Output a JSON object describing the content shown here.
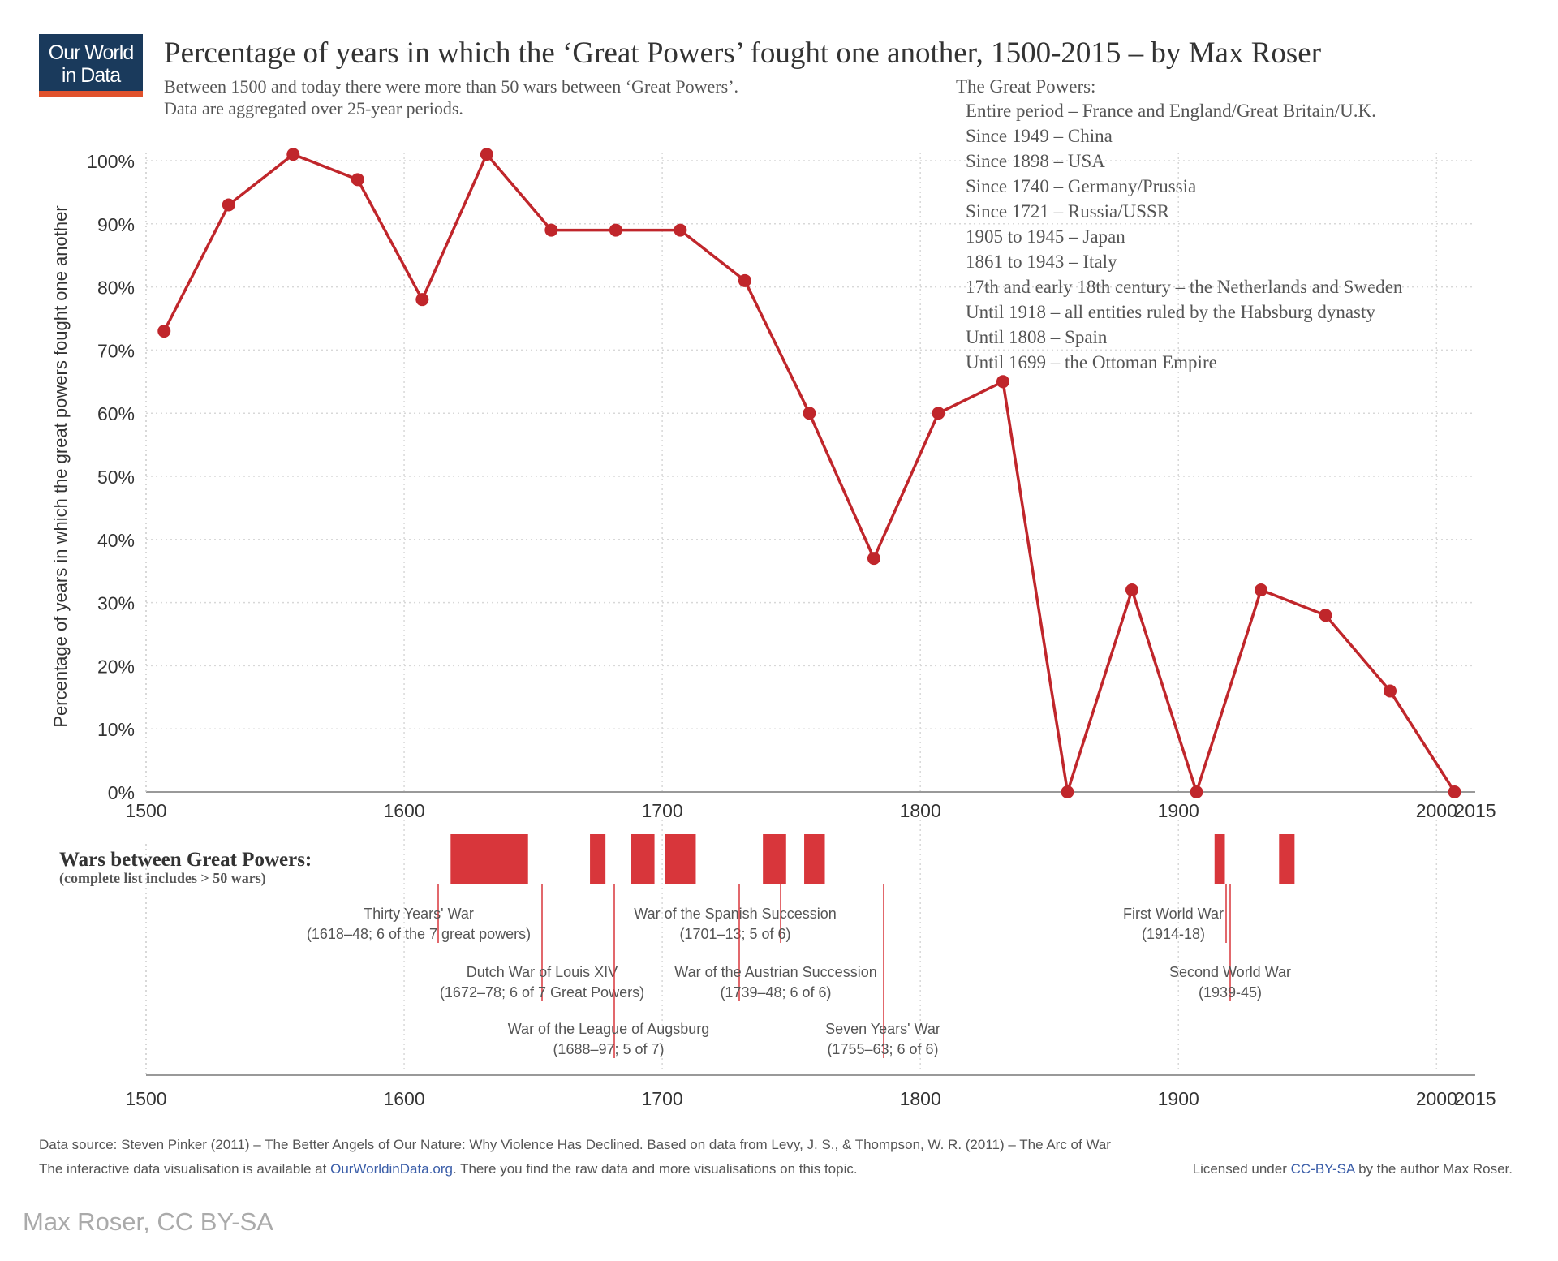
{
  "logo": {
    "line1": "Our World",
    "line2": "in Data"
  },
  "title": "Percentage of years in which the ‘Great Powers’ fought one another, 1500-2015 – by Max Roser",
  "subtitle": [
    "Between 1500 and today there were more than 50 wars between ‘Great Powers’.",
    "Data are aggregated over 25-year periods."
  ],
  "great_powers": {
    "heading": "The Great Powers:",
    "items": [
      "Entire period – France and England/Great Britain/U.K.",
      "Since 1949 – China",
      "Since 1898 – USA",
      "Since 1740 – Germany/Prussia",
      "Since 1721 – Russia/USSR",
      "1905 to 1945 – Japan",
      "1861 to 1943 – Italy",
      "17th and early 18th century – the Netherlands and Sweden",
      "Until 1918 – all entities ruled by the Habsburg dynasty",
      "Until 1808 – Spain",
      "Until 1699 – the Ottoman Empire"
    ]
  },
  "chart_data": {
    "type": "line",
    "title": "Percentage of years in which the ‘Great Powers’ fought one another, 1500-2015 – by Max Roser",
    "xlabel": "",
    "ylabel": "Percentage of years in which the great powers fought one another",
    "xlim": [
      1500,
      2015
    ],
    "ylim": [
      0,
      100
    ],
    "x_ticks": [
      "1500",
      "1600",
      "1700",
      "1800",
      "1900",
      "2000",
      "2015"
    ],
    "x_tick_values": [
      1500,
      1600,
      1700,
      1800,
      1900,
      2000,
      2015
    ],
    "y_ticks": [
      "0%",
      "10%",
      "20%",
      "30%",
      "40%",
      "50%",
      "60%",
      "70%",
      "80%",
      "90%",
      "100%"
    ],
    "y_tick_values": [
      0,
      10,
      20,
      30,
      40,
      50,
      60,
      70,
      80,
      90,
      100
    ],
    "grid": true,
    "line_color": "#c0262b",
    "series": [
      {
        "name": "Percentage of years",
        "x": [
          1507,
          1532,
          1557,
          1582,
          1607,
          1632,
          1657,
          1682,
          1707,
          1732,
          1757,
          1782,
          1807,
          1832,
          1857,
          1882,
          1907,
          1932,
          1957,
          1982,
          2007
        ],
        "values": [
          73,
          93,
          101,
          97,
          78,
          101,
          89,
          89,
          89,
          81,
          60,
          37,
          60,
          65,
          0,
          32,
          0,
          32,
          28,
          16,
          0
        ]
      }
    ],
    "wars_panel": {
      "heading": "Wars between Great Powers:",
      "subheading": "(complete list includes > 50 wars)",
      "wars": [
        {
          "start": 1618,
          "end": 1648,
          "name": "Thirty Years' War",
          "detail": "(1618–48; 6 of the 7 great powers)"
        },
        {
          "start": 1672,
          "end": 1678,
          "name": "Dutch War of Louis XIV",
          "detail": "(1672–78; 6 of 7 Great Powers)"
        },
        {
          "start": 1688,
          "end": 1697,
          "name": "War of the League of Augsburg",
          "detail": "(1688–97; 5 of 7)"
        },
        {
          "start": 1701,
          "end": 1713,
          "name": "War of the Spanish Succession",
          "detail": "(1701–13; 5 of 6)"
        },
        {
          "start": 1739,
          "end": 1748,
          "name": "War of the Austrian Succession",
          "detail": "(1739–48; 6 of 6)"
        },
        {
          "start": 1755,
          "end": 1763,
          "name": "Seven Years' War",
          "detail": "(1755–63; 6 of 6)"
        },
        {
          "start": 1914,
          "end": 1918,
          "name": "First World War",
          "detail": "(1914-18)"
        },
        {
          "start": 1939,
          "end": 1945,
          "name": "Second World War",
          "detail": "(1939-45)"
        }
      ]
    }
  },
  "footer": {
    "source": "Data source: Steven Pinker (2011) – The Better Angels of Our Nature: Why Violence Has Declined. Based on data from Levy, J. S., & Thompson, W. R. (2011) – The Arc of War",
    "interactive_prefix": "The interactive data visualisation is available at ",
    "interactive_link": "OurWorldinData.org",
    "interactive_suffix": ". There you find the raw data and more visualisations on this topic.",
    "license_prefix": "Licensed under ",
    "license_link": "CC-BY-SA",
    "license_suffix": " by the author Max Roser.",
    "credit": "Max Roser, CC BY-SA"
  },
  "colors": {
    "accent": "#c0262b",
    "bar": "#d8363b",
    "logo_bg": "#1a3a5c",
    "logo_stripe": "#e0522c",
    "link": "#3a5da8"
  }
}
